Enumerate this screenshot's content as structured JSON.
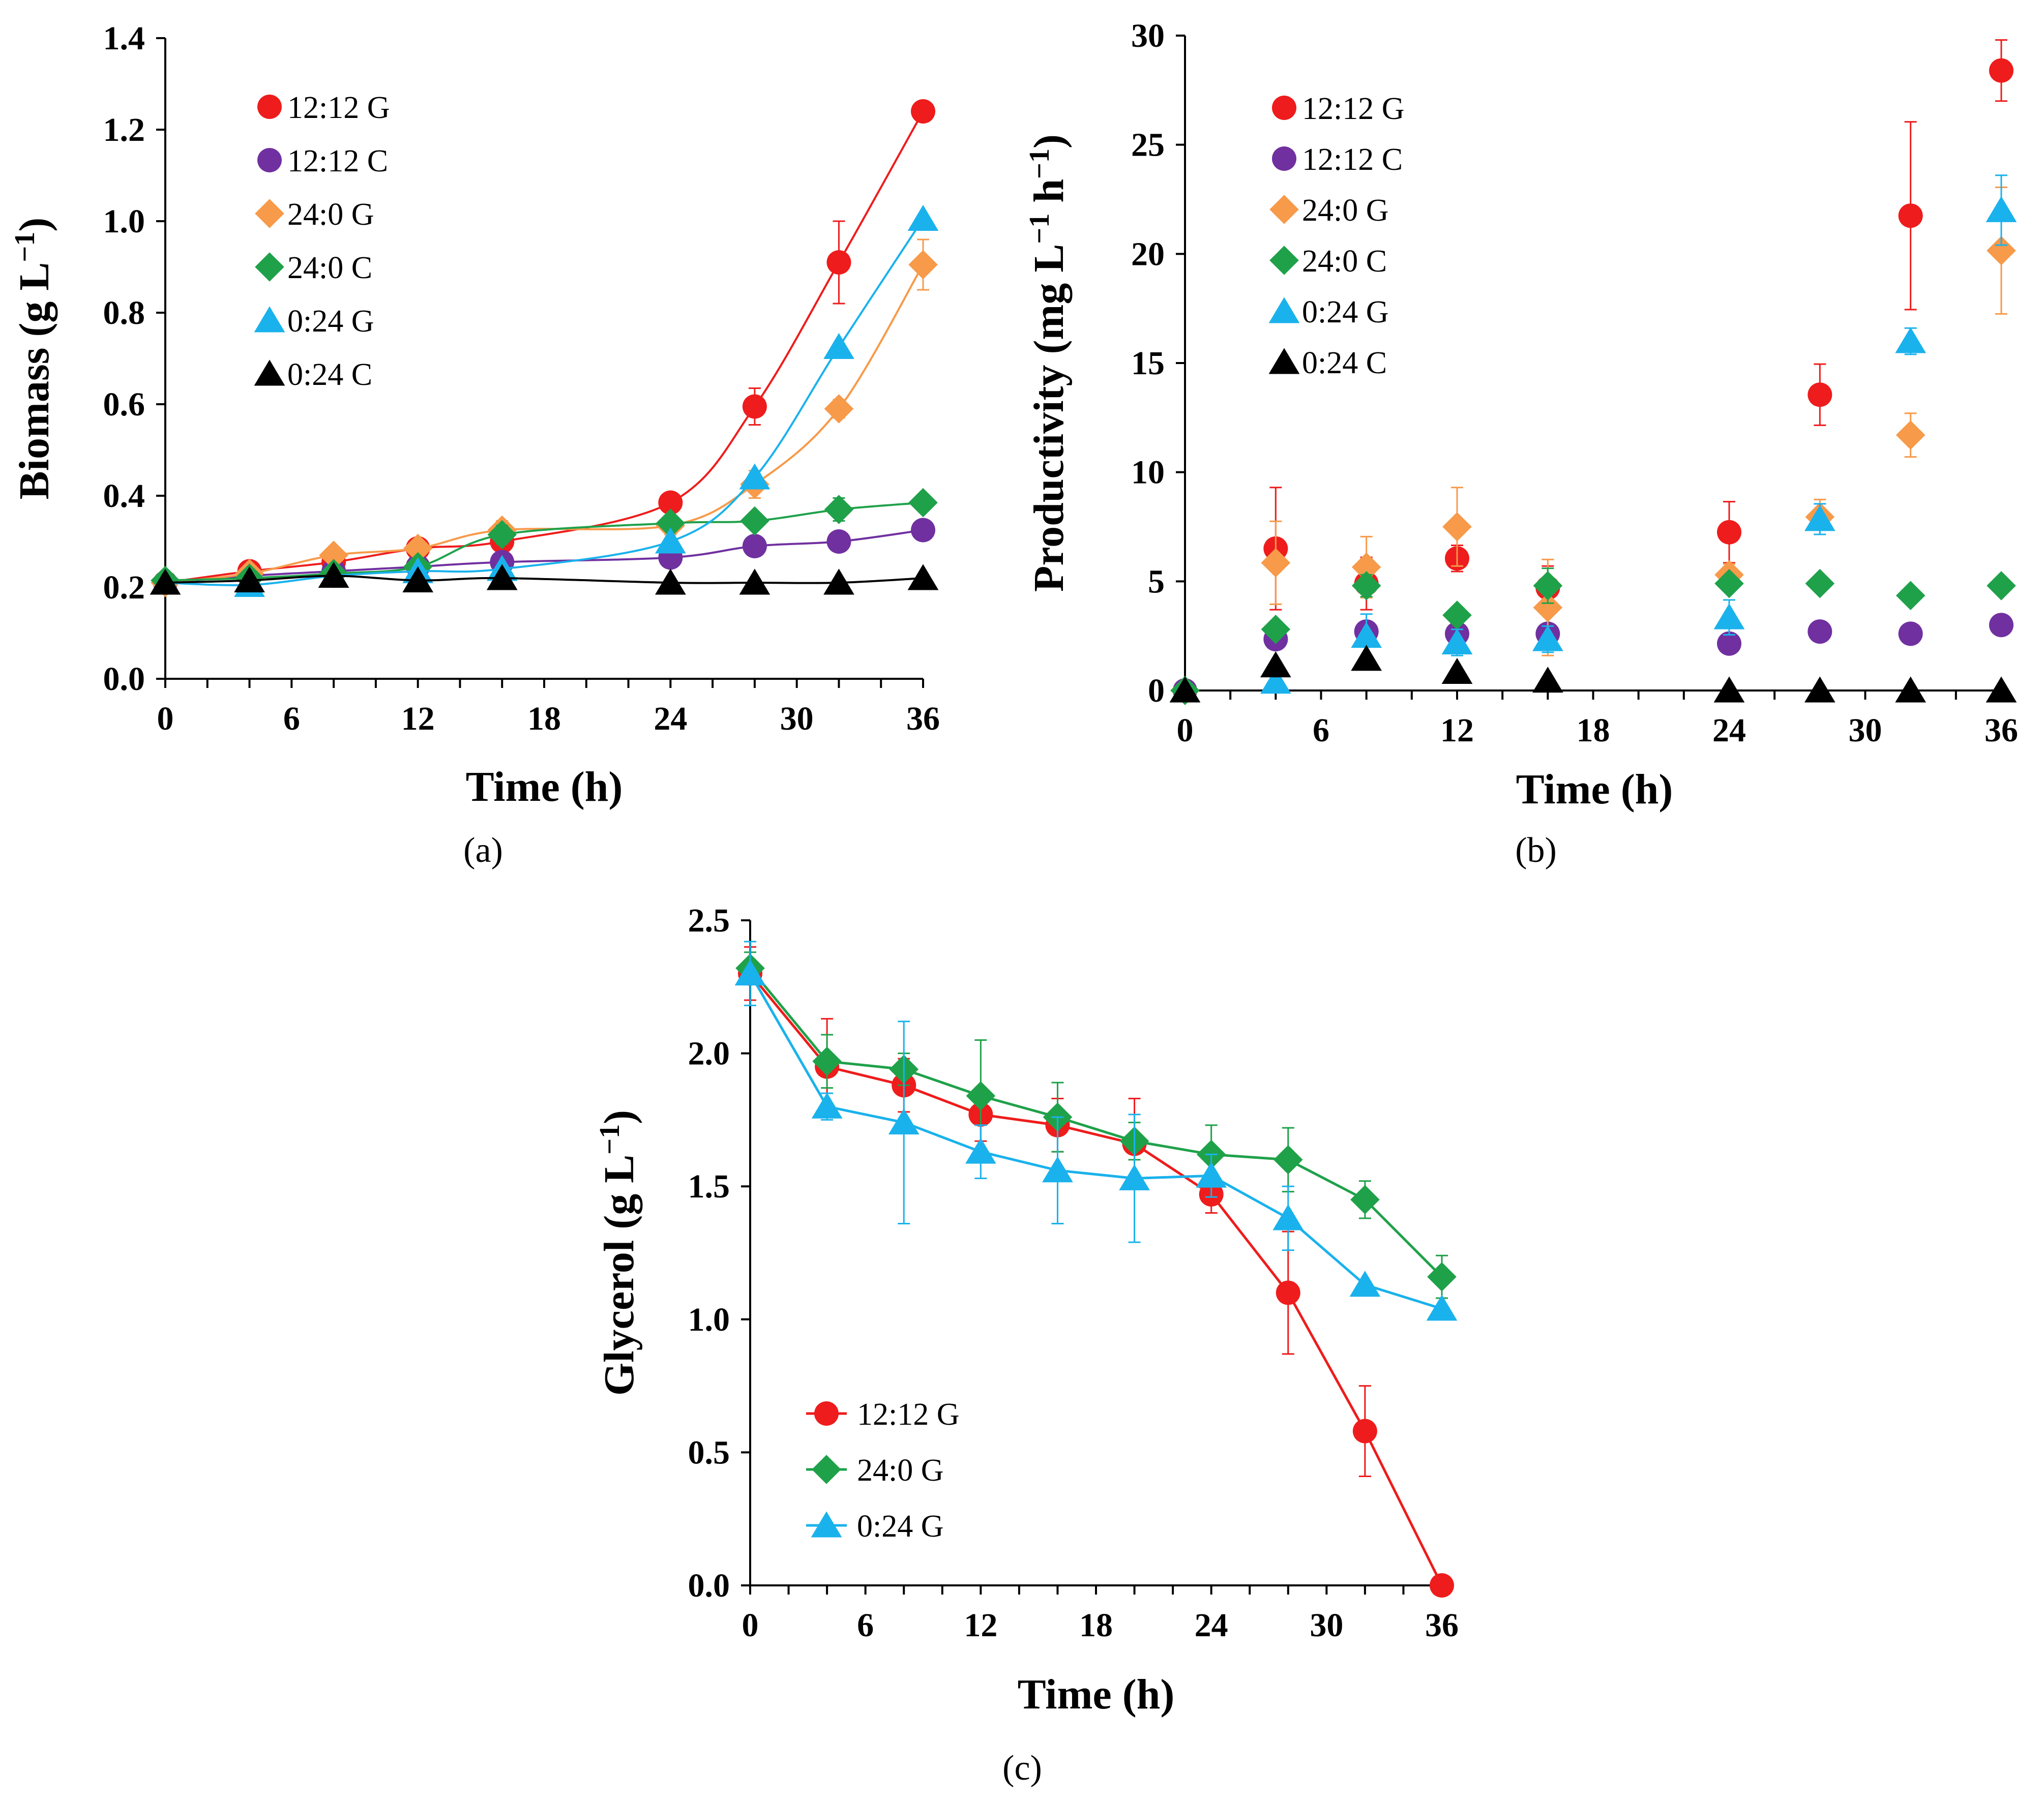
{
  "figure": {
    "colors": {
      "red": "#ee1c1c",
      "purple": "#7030a0",
      "orange": "#f79a4a",
      "green": "#1fa14a",
      "blue": "#1ab2ec",
      "black": "#000000"
    }
  },
  "chart_data": [
    {
      "id": "a",
      "panel_label": "(a)",
      "type": "scatter",
      "title": "",
      "xlabel": "Time (h)",
      "ylabel_main": "Biomass (g L",
      "ylabel_sup": "−1",
      "ylabel_end": ")",
      "xlim": [
        0,
        36
      ],
      "ylim": [
        0,
        1.4
      ],
      "xticks": [
        "0",
        "6",
        "12",
        "18",
        "24",
        "30",
        "36"
      ],
      "yticks": [
        "0.0",
        "0.2",
        "0.4",
        "0.6",
        "0.8",
        "1.0",
        "1.2",
        "1.4"
      ],
      "legend_position": "top-left",
      "lines": "smooth trend curves through each series",
      "series": [
        {
          "name": "12:12 G",
          "color": "#ee1c1c",
          "marker": "circle",
          "x": [
            0,
            4,
            8,
            12,
            16,
            24,
            28,
            32,
            36
          ],
          "y": [
            0.21,
            0.235,
            0.255,
            0.285,
            0.3,
            0.385,
            0.595,
            0.91,
            1.24
          ],
          "err": [
            0,
            0.01,
            0.01,
            0.015,
            0.015,
            0.02,
            0.04,
            0.09,
            0
          ]
        },
        {
          "name": "12:12 C",
          "color": "#7030a0",
          "marker": "circle",
          "x": [
            0,
            4,
            8,
            12,
            16,
            24,
            28,
            32,
            36
          ],
          "y": [
            0.21,
            0.225,
            0.235,
            0.245,
            0.255,
            0.265,
            0.29,
            0.3,
            0.325
          ],
          "err": [
            0,
            0,
            0,
            0,
            0,
            0,
            0,
            0,
            0
          ]
        },
        {
          "name": "24:0 G",
          "color": "#f79a4a",
          "marker": "diamond",
          "x": [
            0,
            4,
            8,
            12,
            16,
            24,
            28,
            32,
            36
          ],
          "y": [
            0.21,
            0.23,
            0.27,
            0.285,
            0.325,
            0.335,
            0.425,
            0.59,
            0.905
          ],
          "err": [
            0,
            0,
            0.01,
            0.01,
            0.02,
            0.02,
            0.03,
            0.02,
            0.055
          ]
        },
        {
          "name": "24:0 C",
          "color": "#1fa14a",
          "marker": "diamond",
          "x": [
            0,
            4,
            8,
            12,
            16,
            24,
            28,
            32,
            36
          ],
          "y": [
            0.215,
            0.22,
            0.23,
            0.245,
            0.315,
            0.34,
            0.345,
            0.37,
            0.385
          ],
          "err": [
            0,
            0,
            0,
            0,
            0.02,
            0,
            0,
            0.025,
            0
          ]
        },
        {
          "name": "0:24 G",
          "color": "#1ab2ec",
          "marker": "triangle",
          "x": [
            0,
            4,
            8,
            12,
            16,
            24,
            28,
            32,
            36
          ],
          "y": [
            0.21,
            0.205,
            0.225,
            0.235,
            0.24,
            0.3,
            0.44,
            0.725,
            1.005
          ],
          "err": [
            0,
            0,
            0,
            0,
            0,
            0,
            0,
            0,
            0
          ]
        },
        {
          "name": "0:24 C",
          "color": "#000000",
          "marker": "triangle",
          "x": [
            0,
            4,
            8,
            12,
            16,
            24,
            28,
            32,
            36
          ],
          "y": [
            0.21,
            0.215,
            0.225,
            0.215,
            0.22,
            0.21,
            0.21,
            0.21,
            0.22
          ],
          "err": [
            0,
            0,
            0,
            0,
            0,
            0,
            0,
            0,
            0
          ]
        }
      ]
    },
    {
      "id": "b",
      "panel_label": "(b)",
      "type": "scatter",
      "title": "",
      "xlabel": "Time (h)",
      "ylabel_main": "Productivity (mg L",
      "ylabel_sup": "−1",
      "ylabel_mid": " h",
      "ylabel_sup2": "−1",
      "ylabel_end": ")",
      "xlim": [
        0,
        36
      ],
      "ylim": [
        0,
        30
      ],
      "xticks": [
        "0",
        "6",
        "12",
        "18",
        "24",
        "30",
        "36"
      ],
      "yticks": [
        "0",
        "5",
        "10",
        "15",
        "20",
        "25",
        "30"
      ],
      "legend_position": "top-left",
      "series": [
        {
          "name": "12:12 G",
          "color": "#ee1c1c",
          "marker": "circle",
          "x": [
            0,
            4,
            8,
            12,
            16,
            24,
            28,
            32,
            36
          ],
          "y": [
            0,
            6.5,
            4.9,
            6.05,
            4.7,
            7.25,
            13.55,
            21.75,
            28.4
          ],
          "err": [
            0,
            2.8,
            1.2,
            0.6,
            1.0,
            1.4,
            1.4,
            4.3,
            1.4
          ]
        },
        {
          "name": "12:12 C",
          "color": "#7030a0",
          "marker": "circle",
          "x": [
            0,
            4,
            8,
            12,
            16,
            24,
            28,
            32,
            36
          ],
          "y": [
            0,
            2.35,
            2.7,
            2.6,
            2.6,
            2.15,
            2.7,
            2.6,
            3.0
          ],
          "err": [
            0,
            0,
            0,
            0,
            0,
            0,
            0,
            0,
            0
          ]
        },
        {
          "name": "24:0 G",
          "color": "#f79a4a",
          "marker": "diamond",
          "x": [
            0,
            4,
            8,
            12,
            16,
            24,
            28,
            32,
            36
          ],
          "y": [
            0,
            5.85,
            5.65,
            7.5,
            3.8,
            5.3,
            7.95,
            11.7,
            20.15
          ],
          "err": [
            0,
            1.9,
            1.4,
            1.8,
            2.2,
            0.5,
            0.8,
            1.0,
            2.9
          ]
        },
        {
          "name": "24:0 C",
          "color": "#1fa14a",
          "marker": "diamond",
          "x": [
            0,
            4,
            8,
            12,
            16,
            24,
            28,
            32,
            36
          ],
          "y": [
            0,
            2.8,
            4.8,
            3.45,
            4.8,
            4.9,
            4.9,
            4.35,
            4.8
          ],
          "err": [
            0,
            0,
            0.5,
            0,
            0.8,
            0,
            0,
            0,
            0
          ]
        },
        {
          "name": "0:24 G",
          "color": "#1ab2ec",
          "marker": "triangle",
          "x": [
            0,
            4,
            8,
            12,
            16,
            24,
            28,
            32,
            36
          ],
          "y": [
            0,
            0.4,
            2.5,
            2.2,
            2.35,
            3.35,
            7.85,
            16.0,
            22.0
          ],
          "err": [
            0,
            0,
            1.0,
            0.6,
            0.6,
            0.8,
            0.7,
            0.6,
            1.6
          ]
        },
        {
          "name": "0:24 C",
          "color": "#000000",
          "marker": "triangle",
          "x": [
            0,
            4,
            8,
            12,
            16,
            24,
            28,
            32,
            36
          ],
          "y": [
            0,
            1.15,
            1.45,
            0.85,
            0.45,
            0,
            0,
            0,
            0
          ],
          "err": [
            0,
            0,
            0,
            0,
            0,
            0,
            0,
            0,
            0
          ]
        }
      ]
    },
    {
      "id": "c",
      "panel_label": "(c)",
      "type": "line",
      "title": "",
      "xlabel": "Time (h)",
      "ylabel_main": "Glycerol (g L",
      "ylabel_sup": "−1",
      "ylabel_end": ")",
      "xlim": [
        0,
        36
      ],
      "ylim": [
        0,
        2.5
      ],
      "xticks": [
        "0",
        "6",
        "12",
        "18",
        "24",
        "30",
        "36"
      ],
      "yticks": [
        "0.0",
        "0.5",
        "1.0",
        "1.5",
        "2.0",
        "2.5"
      ],
      "legend_position": "bottom-left",
      "series": [
        {
          "name": "12:12 G",
          "color": "#ee1c1c",
          "marker": "circle",
          "x": [
            0,
            4,
            8,
            12,
            16,
            20,
            24,
            28,
            32,
            36
          ],
          "y": [
            2.3,
            1.95,
            1.88,
            1.77,
            1.73,
            1.66,
            1.47,
            1.1,
            0.58,
            0.0
          ],
          "err": [
            0.1,
            0.18,
            0.1,
            0.1,
            0.1,
            0.17,
            0.07,
            0.23,
            0.17,
            0
          ]
        },
        {
          "name": "24:0 G",
          "color": "#1fa14a",
          "marker": "diamond",
          "x": [
            0,
            4,
            8,
            12,
            16,
            20,
            24,
            28,
            32,
            36
          ],
          "y": [
            2.32,
            1.97,
            1.94,
            1.84,
            1.76,
            1.67,
            1.62,
            1.6,
            1.45,
            1.16
          ],
          "err": [
            0.06,
            0.1,
            0.06,
            0.21,
            0.13,
            0.07,
            0.11,
            0.12,
            0.07,
            0.08
          ]
        },
        {
          "name": "0:24 G",
          "color": "#1ab2ec",
          "marker": "triangle",
          "x": [
            0,
            4,
            8,
            12,
            16,
            20,
            24,
            28,
            32,
            36
          ],
          "y": [
            2.3,
            1.8,
            1.74,
            1.63,
            1.56,
            1.53,
            1.54,
            1.38,
            1.13,
            1.04
          ],
          "err": [
            0.12,
            0.05,
            0.38,
            0.1,
            0.2,
            0.24,
            0.08,
            0.12,
            0,
            0
          ]
        }
      ]
    }
  ]
}
